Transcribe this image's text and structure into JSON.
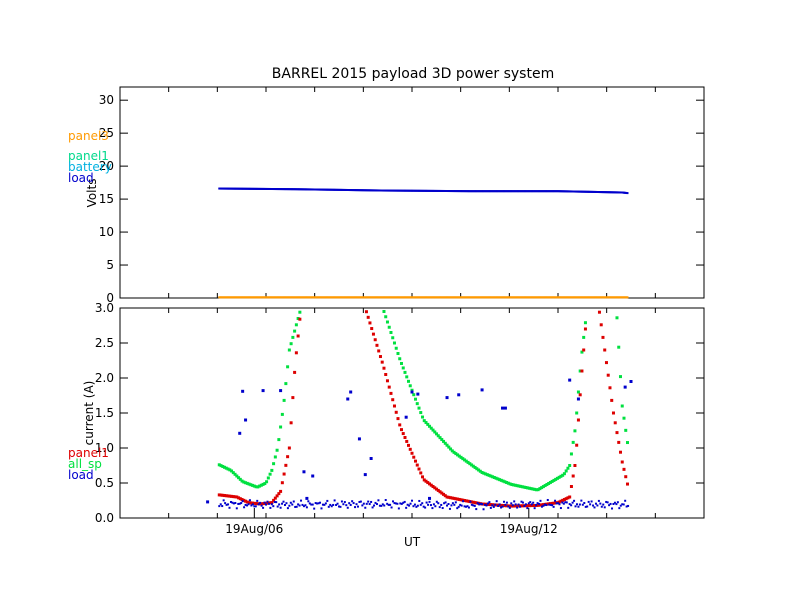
{
  "chart_data": [
    {
      "type": "scatter",
      "title": "BARREL 2015 payload 3D power system",
      "ylabel": "Volts",
      "xlim": [
        0,
        1
      ],
      "ylim": [
        0,
        32
      ],
      "yticks": [
        0,
        5,
        10,
        15,
        20,
        25,
        30
      ],
      "legend": {
        "placement": "left",
        "entries": [
          {
            "name": "panel3",
            "color": "#ff9a00"
          },
          {
            "name": "panel1",
            "color": "#00d98c"
          },
          {
            "name": "battery",
            "color": "#00b0e0"
          },
          {
            "name": "load",
            "color": "#0000cc"
          }
        ]
      },
      "series": [
        {
          "name": "load",
          "color": "#0000cc",
          "x": [
            0.17,
            0.3,
            0.45,
            0.6,
            0.75,
            0.86,
            0.87
          ],
          "y": [
            16.6,
            16.5,
            16.3,
            16.2,
            16.2,
            16.0,
            15.9
          ]
        },
        {
          "name": "panel3",
          "color": "#ff9a00",
          "x": [
            0.17,
            0.87
          ],
          "y": [
            0.1,
            0.1
          ]
        }
      ]
    },
    {
      "type": "scatter",
      "xlabel": "UT",
      "ylabel": "current (A)",
      "xlim": [
        0,
        1
      ],
      "ylim": [
        0,
        3
      ],
      "yticks": [
        0.0,
        0.5,
        1.0,
        1.5,
        2.0,
        2.5,
        3.0
      ],
      "xticks": [
        {
          "x": 0.23,
          "label": "19Aug/06"
        },
        {
          "x": 0.7,
          "label": "19Aug/12"
        }
      ],
      "legend": {
        "placement": "left",
        "entries": [
          {
            "name": "panel1",
            "color": "#dd0000"
          },
          {
            "name": "all_sp",
            "color": "#00e040"
          },
          {
            "name": "load",
            "color": "#0000cc"
          }
        ]
      },
      "series": [
        {
          "name": "all_sp",
          "color": "#00e040",
          "x": [
            0.17,
            0.19,
            0.21,
            0.235,
            0.25,
            0.26,
            0.27,
            0.28,
            0.29,
            0.31,
            0.45,
            0.48,
            0.52,
            0.57,
            0.62,
            0.67,
            0.715,
            0.76,
            0.77,
            0.78,
            0.79,
            0.8,
            0.85,
            0.86,
            0.87
          ],
          "y": [
            0.76,
            0.68,
            0.52,
            0.44,
            0.5,
            0.68,
            1.0,
            1.6,
            2.4,
            3.0,
            3.0,
            2.25,
            1.4,
            0.95,
            0.65,
            0.48,
            0.4,
            0.62,
            0.75,
            1.3,
            2.3,
            3.0,
            3.0,
            1.6,
            1.02
          ]
        },
        {
          "name": "panel1",
          "color": "#dd0000",
          "x": [
            0.17,
            0.2,
            0.22,
            0.24,
            0.26,
            0.275,
            0.29,
            0.3,
            0.31,
            0.42,
            0.45,
            0.48,
            0.52,
            0.56,
            0.62,
            0.67,
            0.715,
            0.75,
            0.77,
            0.78,
            0.79,
            0.8,
            0.82,
            0.83,
            0.845,
            0.86,
            0.87
          ],
          "y": [
            0.33,
            0.3,
            0.22,
            0.2,
            0.22,
            0.38,
            1.0,
            2.2,
            3.0,
            3.0,
            2.2,
            1.3,
            0.55,
            0.3,
            0.2,
            0.17,
            0.18,
            0.22,
            0.3,
            0.8,
            2.0,
            3.0,
            3.0,
            2.4,
            1.5,
            0.8,
            0.45
          ]
        },
        {
          "name": "load",
          "color": "#0000cc",
          "x": [
            0.17,
            0.3,
            0.45,
            0.6,
            0.75,
            0.87
          ],
          "y": [
            0.2,
            0.19,
            0.2,
            0.18,
            0.2,
            0.19
          ],
          "outliers": [
            {
              "x": 0.205,
              "y": 1.21
            },
            {
              "x": 0.21,
              "y": 1.81
            },
            {
              "x": 0.215,
              "y": 1.4
            },
            {
              "x": 0.245,
              "y": 1.82
            },
            {
              "x": 0.275,
              "y": 1.82
            },
            {
              "x": 0.315,
              "y": 0.66
            },
            {
              "x": 0.33,
              "y": 0.6
            },
            {
              "x": 0.39,
              "y": 1.7
            },
            {
              "x": 0.395,
              "y": 1.8
            },
            {
              "x": 0.41,
              "y": 1.13
            },
            {
              "x": 0.42,
              "y": 0.62
            },
            {
              "x": 0.43,
              "y": 0.85
            },
            {
              "x": 0.49,
              "y": 1.44
            },
            {
              "x": 0.5,
              "y": 1.8
            },
            {
              "x": 0.51,
              "y": 1.77
            },
            {
              "x": 0.56,
              "y": 1.72
            },
            {
              "x": 0.58,
              "y": 1.76
            },
            {
              "x": 0.62,
              "y": 1.83
            },
            {
              "x": 0.655,
              "y": 1.57
            },
            {
              "x": 0.66,
              "y": 1.57
            },
            {
              "x": 0.77,
              "y": 1.97
            },
            {
              "x": 0.785,
              "y": 1.7
            },
            {
              "x": 0.865,
              "y": 1.87
            },
            {
              "x": 0.875,
              "y": 1.95
            },
            {
              "x": 0.15,
              "y": 0.23
            },
            {
              "x": 0.32,
              "y": 0.28
            },
            {
              "x": 0.53,
              "y": 0.28
            }
          ]
        }
      ]
    }
  ]
}
